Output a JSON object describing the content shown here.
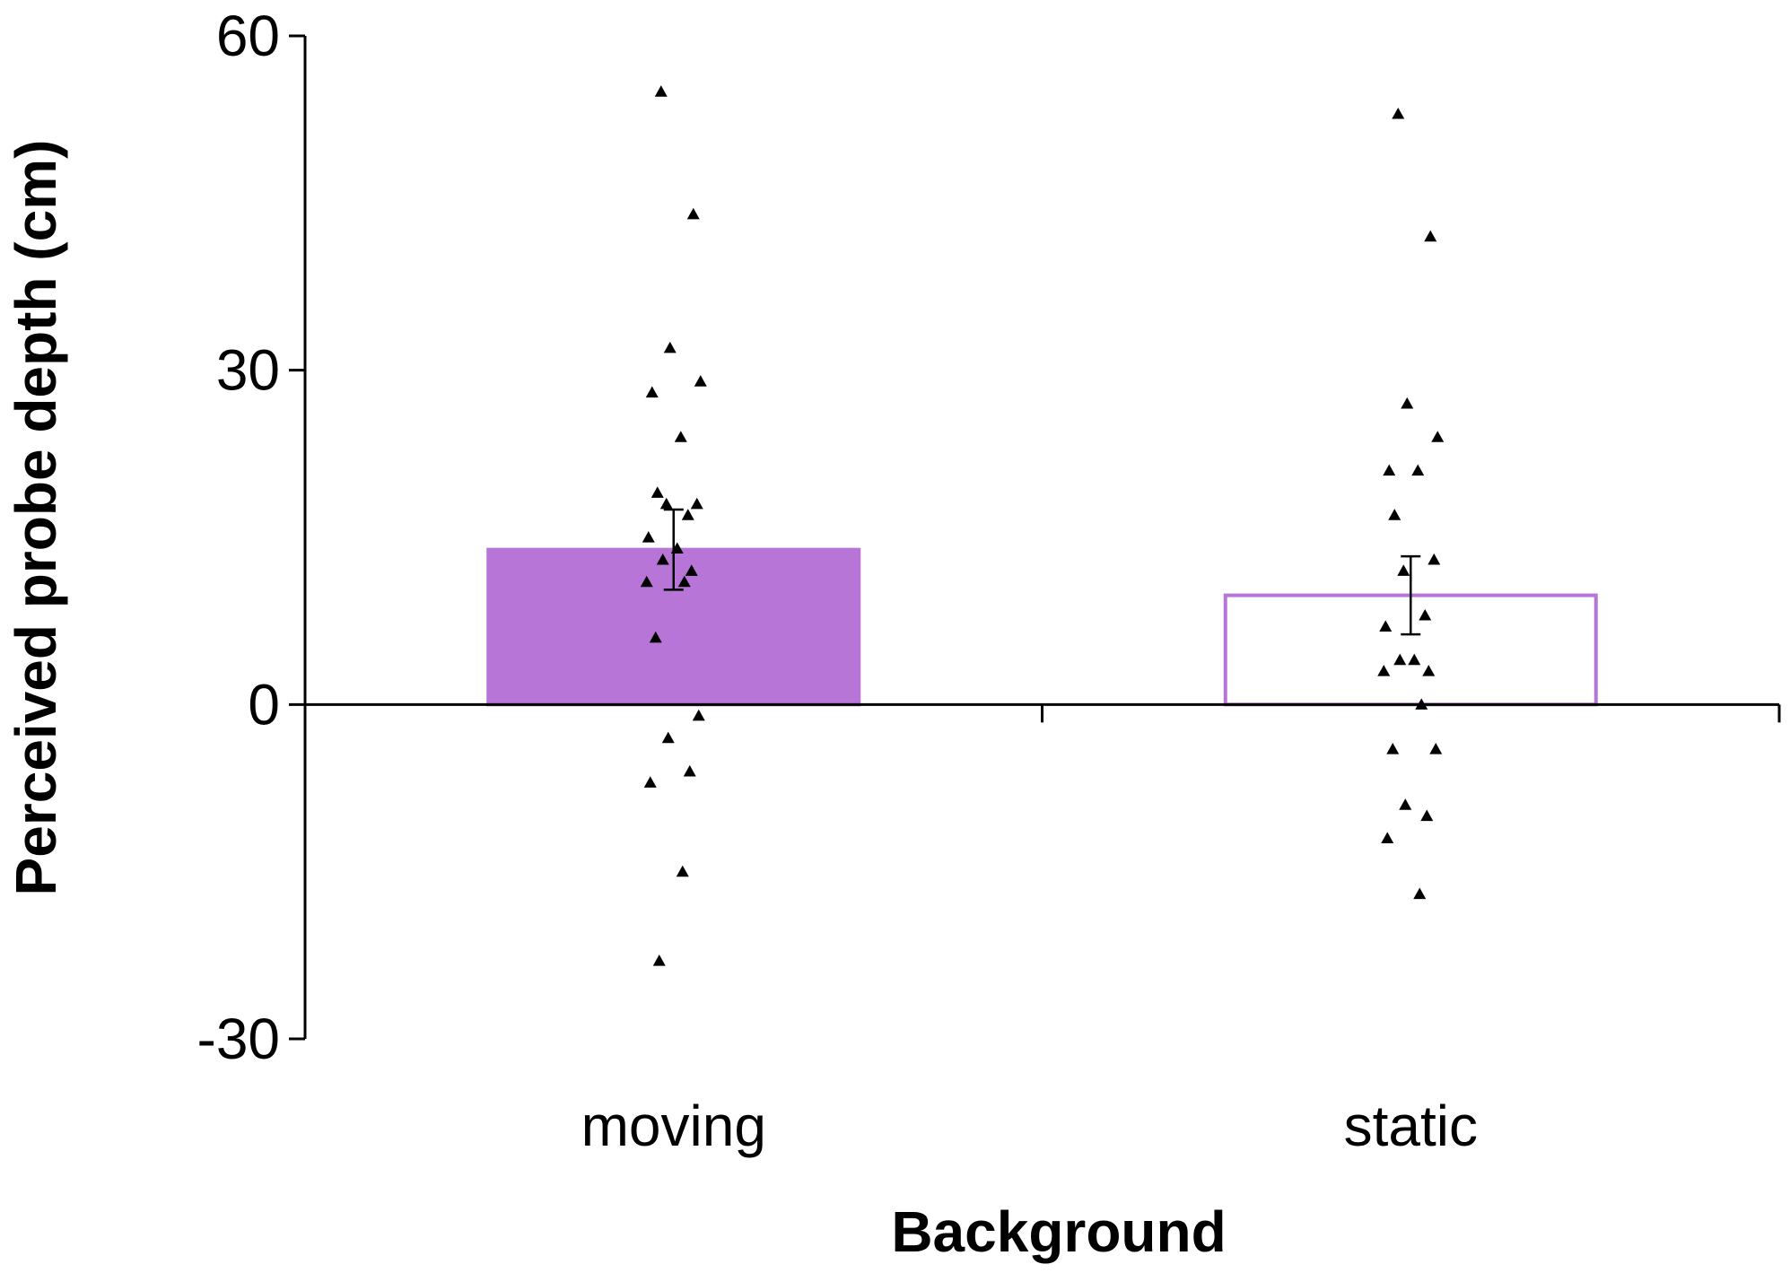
{
  "chart_data": {
    "type": "bar",
    "categories": [
      "moving",
      "static"
    ],
    "values": [
      13.9,
      9.8
    ],
    "error": [
      3.6,
      3.5
    ],
    "bar_fill": [
      "#b775d8",
      "#ffffff"
    ],
    "bar_stroke": "#b775d8",
    "marker_color": "#000000",
    "xlabel": "Background",
    "ylabel": "Perceived probe depth (cm)",
    "ylim": [
      -30,
      60
    ],
    "yticks": [
      -30,
      0,
      30,
      60
    ],
    "points": [
      [
        55,
        44,
        32,
        29,
        28,
        24,
        19,
        18,
        18,
        17,
        15,
        14,
        13,
        12,
        11,
        11,
        6,
        -1,
        -3,
        -6,
        -7,
        -15,
        -23
      ],
      [
        53,
        42,
        27,
        24,
        21,
        21,
        17,
        13,
        12,
        8,
        7,
        4,
        4,
        3,
        3,
        0,
        -4,
        -4,
        -9,
        -10,
        -12,
        -17
      ]
    ]
  }
}
